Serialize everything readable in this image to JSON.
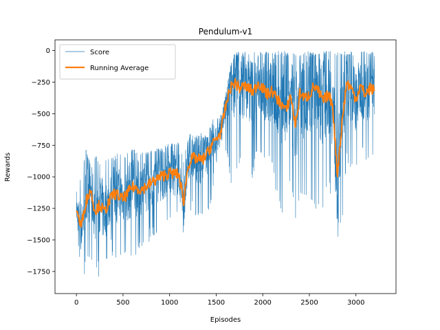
{
  "chart_data": {
    "type": "line",
    "title": "Pendulum-v1",
    "xlabel": "Episodes",
    "ylabel": "Rewards",
    "xlim": [
      -230,
      3430
    ],
    "ylim": [
      -1925,
      85
    ],
    "xticks": [
      0,
      500,
      1000,
      1500,
      2000,
      2500,
      3000
    ],
    "yticks": [
      0,
      -250,
      -500,
      -750,
      -1000,
      -1250,
      -1500,
      -1750
    ],
    "grid": false,
    "legend_position": "upper left",
    "colors": {
      "score": "#1f77b4",
      "running_average": "#ff7f0e"
    },
    "series": [
      {
        "name": "Score",
        "style": "thin line (per-episode, noisy)",
        "x": [
          0,
          50,
          100,
          150,
          200,
          250,
          300,
          350,
          400,
          450,
          500,
          600,
          700,
          800,
          900,
          1000,
          1100,
          1150,
          1200,
          1250,
          1300,
          1350,
          1400,
          1450,
          1500,
          1550,
          1600,
          1650,
          1700,
          1750,
          1800,
          1850,
          1900,
          1950,
          2000,
          2050,
          2100,
          2150,
          2200,
          2250,
          2300,
          2350,
          2400,
          2450,
          2500,
          2550,
          2600,
          2650,
          2700,
          2750,
          2800,
          2850,
          2900,
          2950,
          3000,
          3050,
          3100,
          3150,
          3200
        ],
        "max": [
          -1080,
          -1000,
          -780,
          -850,
          -820,
          -900,
          -880,
          -830,
          -850,
          -800,
          -830,
          -770,
          -800,
          -790,
          -770,
          -730,
          -720,
          -850,
          -670,
          -640,
          -660,
          -640,
          -690,
          -550,
          -520,
          -500,
          -360,
          -140,
          -4,
          -4,
          -4,
          -4,
          -4,
          -4,
          -4,
          -4,
          -4,
          -4,
          -4,
          -4,
          -4,
          -4,
          -4,
          -4,
          -4,
          -4,
          -4,
          -4,
          -4,
          -4,
          -4,
          -4,
          -4,
          -4,
          -4,
          -4,
          -4,
          -4,
          -4
        ],
        "min": [
          -1500,
          -1750,
          -1790,
          -1700,
          -1680,
          -1830,
          -1750,
          -1580,
          -1650,
          -1640,
          -1600,
          -1660,
          -1560,
          -1520,
          -1490,
          -1430,
          -1350,
          -1500,
          -1380,
          -1300,
          -1350,
          -1320,
          -1300,
          -1200,
          -920,
          -870,
          -810,
          -1070,
          -1010,
          -940,
          -930,
          -980,
          -1020,
          -820,
          -830,
          -920,
          -960,
          -1170,
          -1370,
          -1260,
          -1100,
          -1440,
          -1190,
          -1220,
          -1180,
          -1250,
          -1280,
          -1300,
          -1070,
          -1260,
          -1520,
          -1360,
          -920,
          -990,
          -1000,
          -800,
          -950,
          -880,
          -900
        ]
      },
      {
        "name": "Running Average",
        "style": "thick line",
        "x": [
          0,
          50,
          100,
          150,
          200,
          250,
          300,
          350,
          400,
          450,
          500,
          600,
          700,
          800,
          900,
          1000,
          1100,
          1150,
          1200,
          1250,
          1300,
          1350,
          1400,
          1450,
          1500,
          1550,
          1600,
          1650,
          1700,
          1750,
          1800,
          1850,
          1900,
          1950,
          2000,
          2050,
          2100,
          2150,
          2200,
          2250,
          2300,
          2350,
          2400,
          2450,
          2500,
          2550,
          2600,
          2650,
          2700,
          2750,
          2800,
          2850,
          2900,
          2950,
          3000,
          3050,
          3100,
          3150,
          3200
        ],
        "y": [
          -1250,
          -1400,
          -1200,
          -1100,
          -1270,
          -1220,
          -1280,
          -1200,
          -1130,
          -1150,
          -1180,
          -1080,
          -1100,
          -1050,
          -1000,
          -970,
          -980,
          -1200,
          -900,
          -850,
          -860,
          -870,
          -820,
          -750,
          -700,
          -650,
          -450,
          -300,
          -250,
          -300,
          -280,
          -300,
          -330,
          -250,
          -300,
          -350,
          -320,
          -380,
          -420,
          -480,
          -350,
          -600,
          -330,
          -380,
          -350,
          -280,
          -330,
          -400,
          -350,
          -420,
          -980,
          -580,
          -250,
          -300,
          -380,
          -280,
          -350,
          -300,
          -320
        ]
      }
    ]
  }
}
